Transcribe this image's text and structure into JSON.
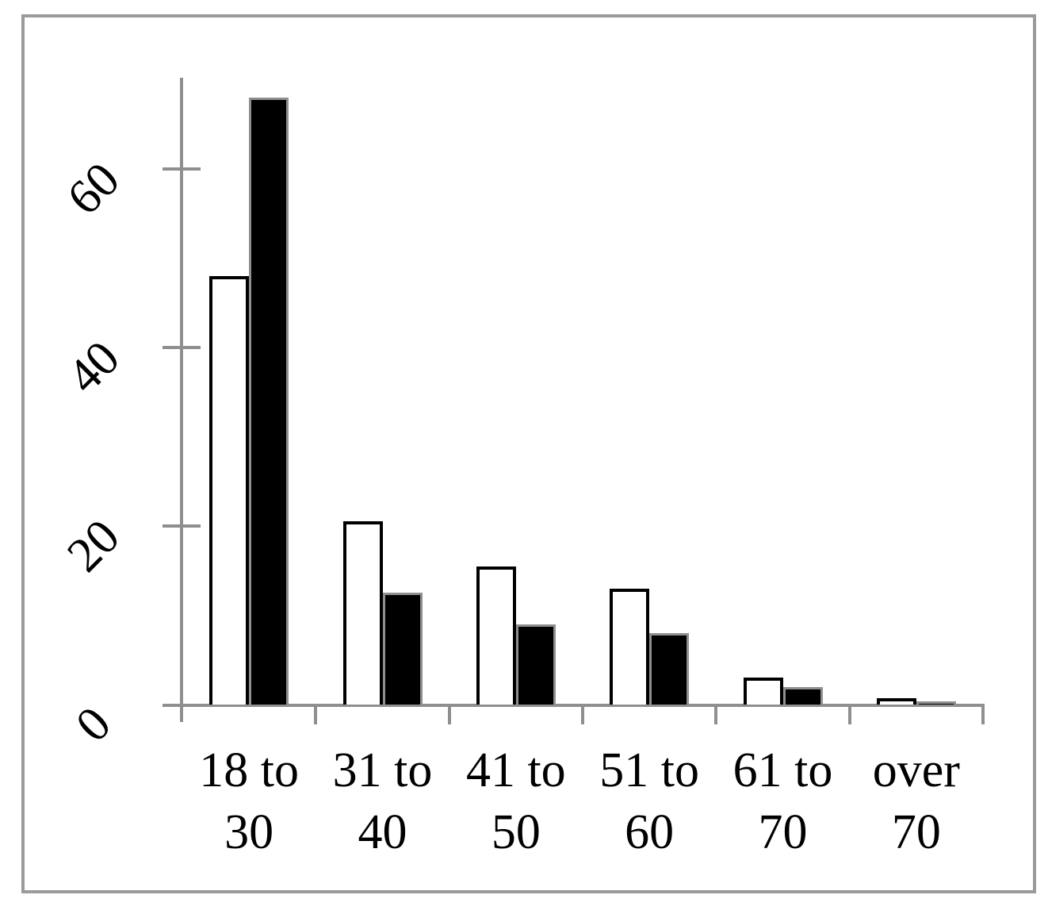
{
  "chart_data": {
    "type": "bar",
    "title": "",
    "xlabel": "",
    "ylabel": "",
    "categories": [
      "18 to 30",
      "31 to 40",
      "41 to 50",
      "51 to 60",
      "61 to 70",
      "over 70"
    ],
    "category_label_lines": [
      [
        "18 to",
        "30"
      ],
      [
        "31 to",
        "40"
      ],
      [
        "41 to",
        "50"
      ],
      [
        "51 to",
        "60"
      ],
      [
        "61 to",
        "70"
      ],
      [
        "over",
        "70"
      ]
    ],
    "series": [
      {
        "name": "white (open) bars",
        "fill": "#ffffff",
        "outline": "#000000",
        "values": [
          48,
          20.5,
          15.5,
          13,
          3,
          0.7
        ]
      },
      {
        "name": "black (filled) bars",
        "fill": "#000000",
        "outline": "#8f8f8f",
        "values": [
          68,
          12.5,
          9,
          8,
          2,
          0.4
        ]
      }
    ],
    "yticks": [
      0,
      20,
      40,
      60
    ],
    "ytick_labels": [
      "0",
      "20",
      "40",
      "60"
    ],
    "ylim": [
      0,
      70
    ],
    "grid": false,
    "legend": "none"
  },
  "styles": {
    "axis_color": "#8f8f8f",
    "frame_color": "#9a9a9a",
    "text_color": "#000000",
    "background": "#ffffff"
  }
}
